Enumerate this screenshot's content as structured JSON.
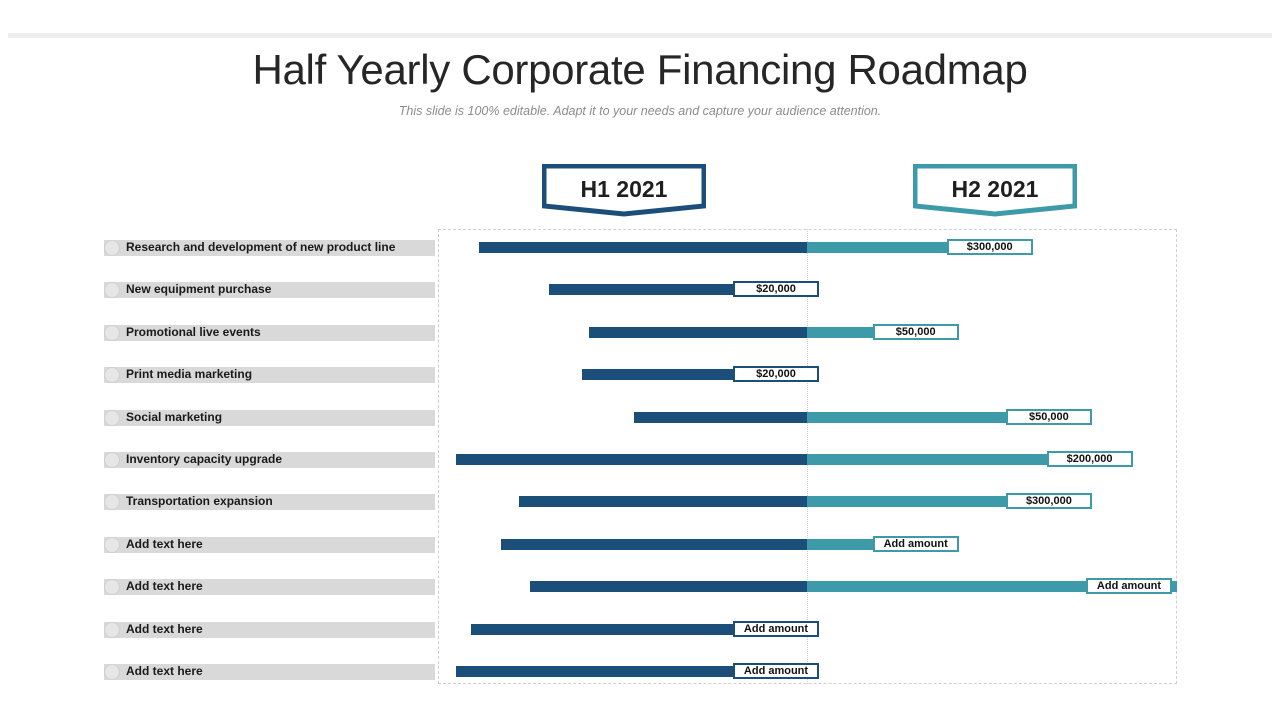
{
  "title": "Half Yearly Corporate Financing Roadmap",
  "subtitle": "This slide is 100% editable. Adapt it to your needs and capture your audience attention.",
  "colors": {
    "h1": "#1b4f7a",
    "h2": "#3d9aa8",
    "label_bg": "#d9d9d9"
  },
  "chart_data": {
    "type": "bar",
    "subtype": "horizontal-gantt-roadmap",
    "periods": [
      "H1 2021",
      "H2 2021"
    ],
    "categories": [
      "Research and development of new product line",
      "New equipment purchase",
      "Promotional live events",
      "Print media marketing",
      "Social marketing",
      "Inventory capacity upgrade",
      "Transportation expansion",
      "Add  text here",
      "Add  text here",
      "Add  text here",
      "Add  text here"
    ],
    "h1_span": [
      0.89,
      0.7,
      0.59,
      0.61,
      0.47,
      0.95,
      0.78,
      0.83,
      0.75,
      0.91,
      0.95
    ],
    "h2_span": [
      0.61,
      0.0,
      0.41,
      0.0,
      0.77,
      0.88,
      0.77,
      0.41,
      1.0,
      0.0,
      0.0
    ],
    "amounts": [
      "$300,000",
      "$20,000",
      "$50,000",
      "$20,000",
      "$50,000",
      "$200,000",
      "$300,000",
      "Add amount",
      "Add amount",
      "Add amount",
      "Add amount"
    ],
    "amount_in_h2": [
      true,
      false,
      true,
      false,
      true,
      true,
      true,
      true,
      true,
      false,
      false
    ]
  }
}
